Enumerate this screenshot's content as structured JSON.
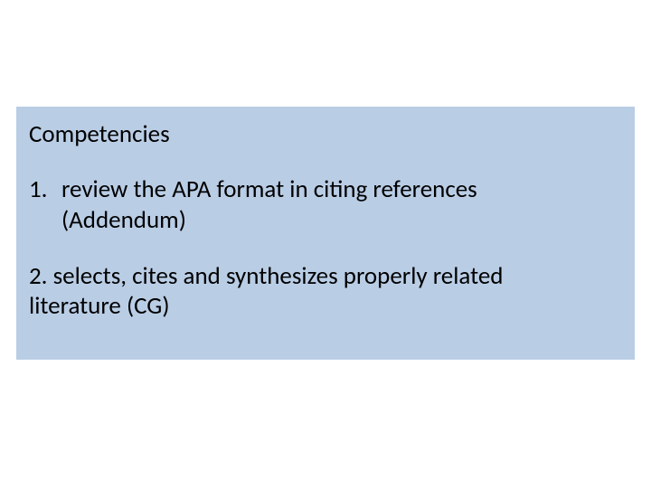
{
  "slide": {
    "background_color": "#ffffff",
    "box_background_color": "#b9cde5",
    "text_color": "#000000",
    "font_family": "Calibri",
    "font_size": 27,
    "heading": "Competencies",
    "item1_number": "1.",
    "item1_line1": "review the APA format in citing references",
    "item1_line2": "(Addendum)",
    "item2_line1": "2. selects, cites and synthesizes properly related",
    "item2_line2": "literature (CG)"
  }
}
